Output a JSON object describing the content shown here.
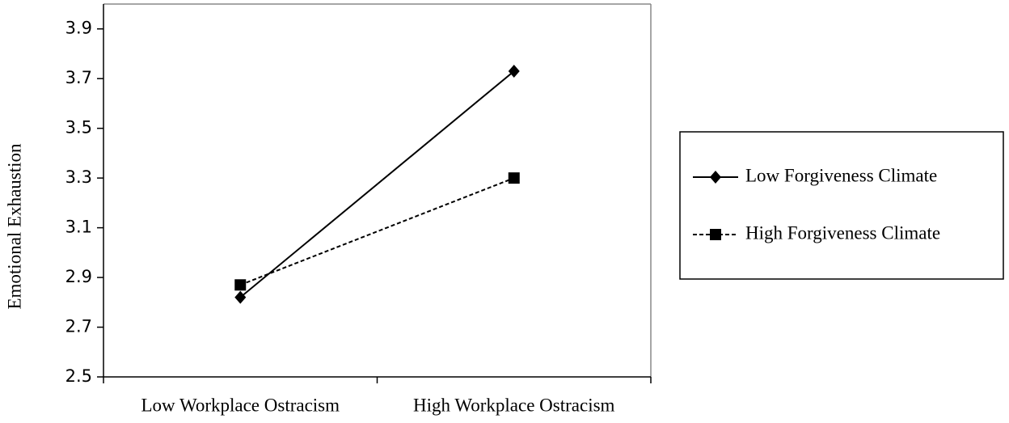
{
  "chart_data": {
    "type": "line",
    "y_label": "Emotional Exhaustion",
    "categories": [
      "Low Workplace Ostracism",
      "High Workplace Ostracism"
    ],
    "ylim": [
      2.5,
      4.0
    ],
    "yticks": [
      2.5,
      2.7,
      2.9,
      3.1,
      3.3,
      3.5,
      3.7,
      3.9
    ],
    "legend": "right",
    "series": [
      {
        "name": "Low Forgiveness Climate",
        "color": "#000000",
        "marker": "diamond",
        "dash": "solid",
        "values": [
          2.82,
          3.73
        ]
      },
      {
        "name": "High Forgiveness Climate",
        "color": "#000000",
        "marker": "square",
        "dash": "dashed",
        "values": [
          2.87,
          3.3
        ]
      }
    ]
  }
}
